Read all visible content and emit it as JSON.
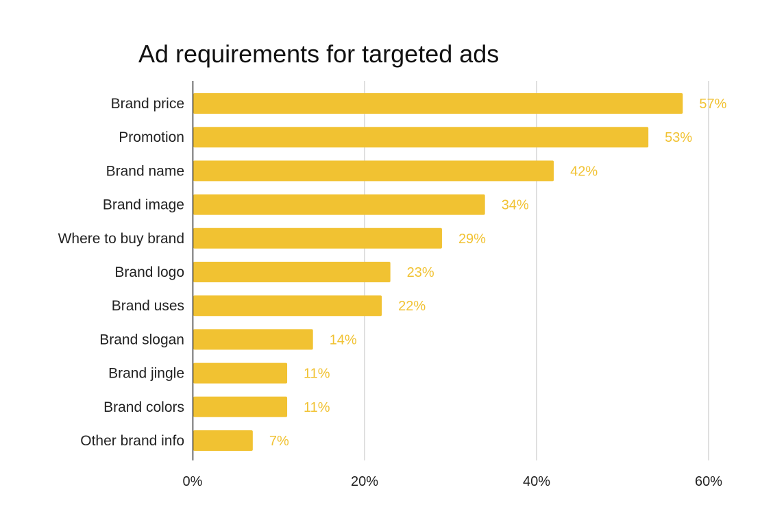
{
  "chart_data": {
    "type": "bar",
    "orientation": "horizontal",
    "title": "Ad requirements for targeted ads",
    "xlabel": "",
    "ylabel": "",
    "categories": [
      "Brand price",
      "Promotion",
      "Brand name",
      "Brand image",
      "Where to buy brand",
      "Brand logo",
      "Brand uses",
      "Brand slogan",
      "Brand jingle",
      "Brand colors",
      "Other brand info"
    ],
    "values": [
      57,
      53,
      42,
      34,
      29,
      23,
      22,
      14,
      11,
      11,
      7
    ],
    "data_labels": [
      "57%",
      "53%",
      "42%",
      "34%",
      "29%",
      "23%",
      "22%",
      "14%",
      "11%",
      "11%",
      "7%"
    ],
    "xlim": [
      0,
      60
    ],
    "x_ticks": [
      0,
      20,
      40,
      60
    ],
    "x_tick_labels": [
      "0%",
      "20%",
      "40%",
      "60%"
    ],
    "grid": "vertical",
    "legend": "none",
    "colors": {
      "bar": "#F1C232",
      "data_label": "#F1C232",
      "grid": "#cccccc",
      "axis": "#333333"
    }
  }
}
